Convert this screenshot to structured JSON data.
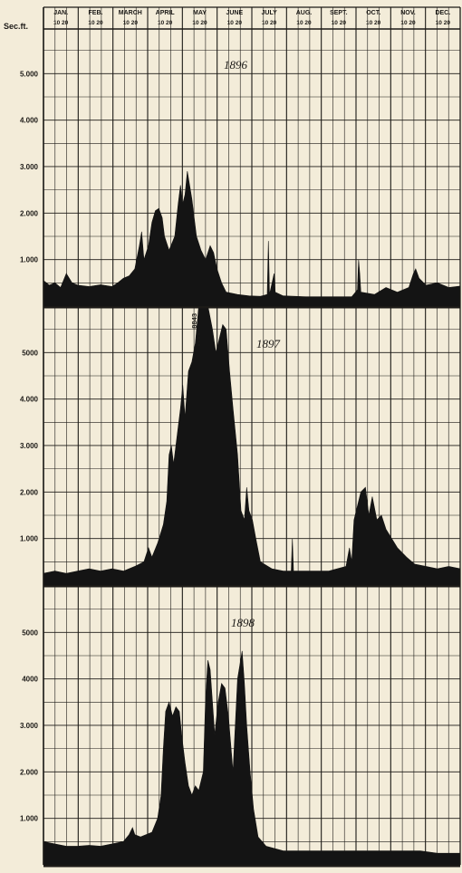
{
  "chart_data": {
    "type": "area",
    "y_unit": "Sec.ft.",
    "months": [
      {
        "name": "JAN.",
        "days": "10 20"
      },
      {
        "name": "FEB.",
        "days": "10 20"
      },
      {
        "name": "MARCH",
        "days": "10 20"
      },
      {
        "name": "APRIL",
        "days": "10 20"
      },
      {
        "name": "MAY",
        "days": "10 20"
      },
      {
        "name": "JUNE",
        "days": "10 20"
      },
      {
        "name": "JULY",
        "days": "10 20"
      },
      {
        "name": "AUG.",
        "days": "10 20"
      },
      {
        "name": "SEPT.",
        "days": "10 20"
      },
      {
        "name": "OCT.",
        "days": "10 20"
      },
      {
        "name": "NOV.",
        "days": "10 20"
      },
      {
        "name": "DEC.",
        "days": "10 20"
      }
    ],
    "x_unit": "day of year",
    "xlim": [
      0,
      365
    ],
    "fill_color": "#141414",
    "grid": true,
    "panels": [
      {
        "year": "1896",
        "ylim": [
          0,
          6000
        ],
        "yticks": [
          {
            "value": 1000,
            "label": "1.000"
          },
          {
            "value": 2000,
            "label": "2.000"
          },
          {
            "value": 3000,
            "label": "3.000"
          },
          {
            "value": 4000,
            "label": "4.000"
          },
          {
            "value": 5000,
            "label": "5.000"
          }
        ],
        "points": [
          [
            0,
            550
          ],
          [
            5,
            450
          ],
          [
            10,
            500
          ],
          [
            15,
            400
          ],
          [
            20,
            700
          ],
          [
            25,
            500
          ],
          [
            30,
            450
          ],
          [
            40,
            420
          ],
          [
            50,
            460
          ],
          [
            60,
            420
          ],
          [
            65,
            500
          ],
          [
            70,
            600
          ],
          [
            75,
            650
          ],
          [
            80,
            800
          ],
          [
            84,
            1300
          ],
          [
            86,
            1600
          ],
          [
            88,
            1000
          ],
          [
            92,
            1300
          ],
          [
            95,
            1800
          ],
          [
            98,
            2050
          ],
          [
            101,
            2100
          ],
          [
            104,
            1900
          ],
          [
            106,
            1500
          ],
          [
            110,
            1200
          ],
          [
            115,
            1500
          ],
          [
            118,
            2200
          ],
          [
            120,
            2600
          ],
          [
            122,
            2200
          ],
          [
            124,
            2400
          ],
          [
            126,
            2900
          ],
          [
            128,
            2600
          ],
          [
            130,
            2300
          ],
          [
            134,
            1500
          ],
          [
            138,
            1200
          ],
          [
            142,
            1000
          ],
          [
            146,
            1300
          ],
          [
            149,
            1150
          ],
          [
            152,
            800
          ],
          [
            156,
            500
          ],
          [
            160,
            300
          ],
          [
            170,
            250
          ],
          [
            180,
            220
          ],
          [
            190,
            210
          ],
          [
            196,
            250
          ],
          [
            197,
            1400
          ],
          [
            198,
            250
          ],
          [
            202,
            700
          ],
          [
            203,
            300
          ],
          [
            210,
            220
          ],
          [
            230,
            200
          ],
          [
            250,
            200
          ],
          [
            270,
            200
          ],
          [
            275,
            350
          ],
          [
            276,
            1000
          ],
          [
            277,
            700
          ],
          [
            278,
            300
          ],
          [
            290,
            250
          ],
          [
            300,
            400
          ],
          [
            310,
            300
          ],
          [
            320,
            400
          ],
          [
            324,
            700
          ],
          [
            326,
            800
          ],
          [
            329,
            600
          ],
          [
            335,
            450
          ],
          [
            345,
            500
          ],
          [
            355,
            400
          ],
          [
            365,
            430
          ]
        ]
      },
      {
        "year": "1897",
        "ylim": [
          0,
          6000
        ],
        "yticks": [
          {
            "value": 1000,
            "label": "1.000"
          },
          {
            "value": 2000,
            "label": "2.000"
          },
          {
            "value": 3000,
            "label": "3.000"
          },
          {
            "value": 4000,
            "label": "4.000"
          },
          {
            "value": 5000,
            "label": "5000"
          }
        ],
        "annotation": {
          "text": "8843",
          "x": 134
        },
        "points": [
          [
            0,
            250
          ],
          [
            10,
            300
          ],
          [
            20,
            250
          ],
          [
            30,
            300
          ],
          [
            40,
            350
          ],
          [
            50,
            300
          ],
          [
            60,
            350
          ],
          [
            70,
            300
          ],
          [
            80,
            400
          ],
          [
            88,
            500
          ],
          [
            92,
            800
          ],
          [
            95,
            600
          ],
          [
            100,
            900
          ],
          [
            105,
            1300
          ],
          [
            108,
            1800
          ],
          [
            110,
            2800
          ],
          [
            112,
            3000
          ],
          [
            114,
            2600
          ],
          [
            117,
            3200
          ],
          [
            120,
            3800
          ],
          [
            122,
            4300
          ],
          [
            124,
            3600
          ],
          [
            127,
            4600
          ],
          [
            130,
            4800
          ],
          [
            133,
            5200
          ],
          [
            136,
            6000
          ],
          [
            140,
            6000
          ],
          [
            144,
            6000
          ],
          [
            148,
            5500
          ],
          [
            151,
            5000
          ],
          [
            154,
            5300
          ],
          [
            157,
            5600
          ],
          [
            160,
            5500
          ],
          [
            163,
            4600
          ],
          [
            166,
            3800
          ],
          [
            170,
            2800
          ],
          [
            173,
            1600
          ],
          [
            176,
            1400
          ],
          [
            178,
            2100
          ],
          [
            180,
            1600
          ],
          [
            183,
            1400
          ],
          [
            186,
            1000
          ],
          [
            190,
            500
          ],
          [
            200,
            350
          ],
          [
            210,
            300
          ],
          [
            217,
            300
          ],
          [
            218,
            1000
          ],
          [
            219,
            300
          ],
          [
            230,
            300
          ],
          [
            250,
            300
          ],
          [
            265,
            400
          ],
          [
            268,
            800
          ],
          [
            270,
            500
          ],
          [
            272,
            1400
          ],
          [
            275,
            1700
          ],
          [
            278,
            2000
          ],
          [
            282,
            2100
          ],
          [
            285,
            1500
          ],
          [
            288,
            1900
          ],
          [
            292,
            1400
          ],
          [
            296,
            1500
          ],
          [
            300,
            1200
          ],
          [
            305,
            1000
          ],
          [
            310,
            800
          ],
          [
            318,
            600
          ],
          [
            325,
            450
          ],
          [
            335,
            400
          ],
          [
            345,
            350
          ],
          [
            355,
            400
          ],
          [
            365,
            350
          ]
        ]
      },
      {
        "year": "1898",
        "ylim": [
          0,
          6000
        ],
        "yticks": [
          {
            "value": 1000,
            "label": "1.000"
          },
          {
            "value": 2000,
            "label": "2.000"
          },
          {
            "value": 3000,
            "label": "3.000"
          },
          {
            "value": 4000,
            "label": "4000"
          },
          {
            "value": 5000,
            "label": "5000"
          }
        ],
        "points": [
          [
            0,
            500
          ],
          [
            10,
            450
          ],
          [
            20,
            400
          ],
          [
            30,
            400
          ],
          [
            40,
            420
          ],
          [
            50,
            400
          ],
          [
            60,
            450
          ],
          [
            70,
            500
          ],
          [
            75,
            650
          ],
          [
            78,
            800
          ],
          [
            80,
            650
          ],
          [
            85,
            600
          ],
          [
            95,
            700
          ],
          [
            100,
            1000
          ],
          [
            103,
            1500
          ],
          [
            105,
            2500
          ],
          [
            107,
            3300
          ],
          [
            110,
            3500
          ],
          [
            113,
            3200
          ],
          [
            116,
            3400
          ],
          [
            119,
            3300
          ],
          [
            121,
            2800
          ],
          [
            124,
            2200
          ],
          [
            127,
            1700
          ],
          [
            130,
            1500
          ],
          [
            133,
            1700
          ],
          [
            136,
            1600
          ],
          [
            140,
            2000
          ],
          [
            142,
            3600
          ],
          [
            144,
            4400
          ],
          [
            146,
            4200
          ],
          [
            148,
            3500
          ],
          [
            150,
            2800
          ],
          [
            153,
            3500
          ],
          [
            156,
            3900
          ],
          [
            159,
            3800
          ],
          [
            162,
            3200
          ],
          [
            164,
            2600
          ],
          [
            166,
            2000
          ],
          [
            168,
            3000
          ],
          [
            170,
            4000
          ],
          [
            172,
            4300
          ],
          [
            174,
            4600
          ],
          [
            176,
            3900
          ],
          [
            178,
            3000
          ],
          [
            181,
            2000
          ],
          [
            184,
            1200
          ],
          [
            188,
            600
          ],
          [
            195,
            400
          ],
          [
            210,
            300
          ],
          [
            230,
            300
          ],
          [
            250,
            300
          ],
          [
            270,
            300
          ],
          [
            290,
            300
          ],
          [
            310,
            300
          ],
          [
            330,
            300
          ],
          [
            345,
            250
          ],
          [
            355,
            250
          ],
          [
            365,
            250
          ]
        ]
      }
    ]
  }
}
